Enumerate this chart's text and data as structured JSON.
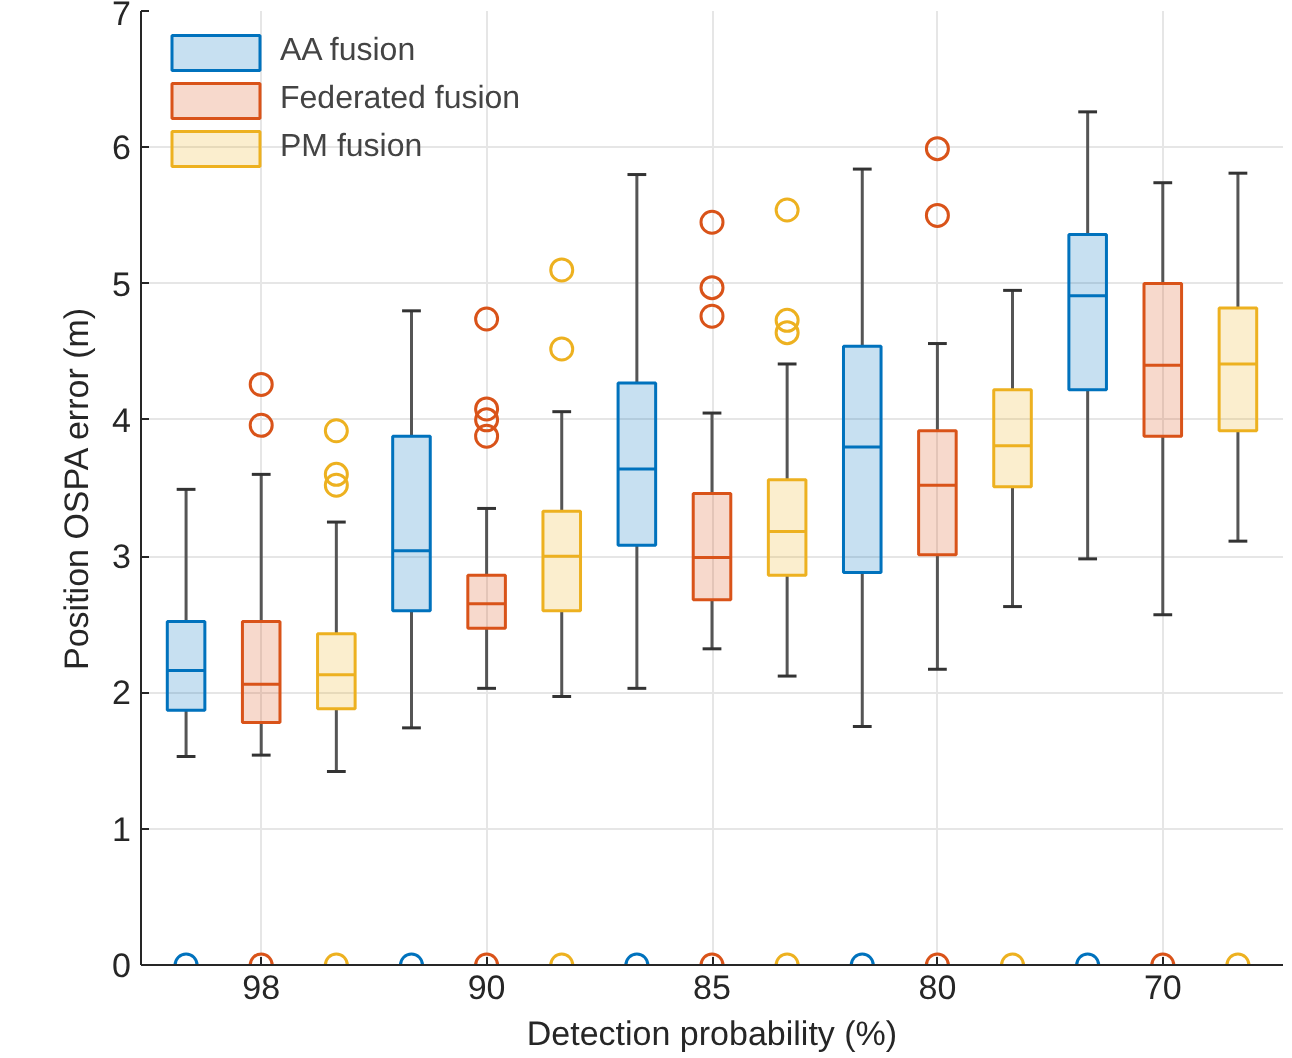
{
  "chart_data": {
    "type": "box",
    "xlabel": "Detection probability (%)",
    "ylabel": "Position OSPA error (m)",
    "categories": [
      "98",
      "90",
      "85",
      "80",
      "70"
    ],
    "ylim": [
      0,
      7
    ],
    "yticks": [
      0,
      1,
      2,
      3,
      4,
      5,
      6,
      7
    ],
    "grid": true,
    "legend": "top left",
    "marker": "circle",
    "series": [
      {
        "name": "AA fusion",
        "color": "#0072bd",
        "boxes": [
          {
            "low": 1.53,
            "q1": 1.87,
            "median": 2.16,
            "q3": 2.52,
            "high": 3.49,
            "outliers": [
              0
            ]
          },
          {
            "low": 1.74,
            "q1": 2.6,
            "median": 3.04,
            "q3": 3.88,
            "high": 4.8,
            "outliers": [
              0
            ]
          },
          {
            "low": 2.03,
            "q1": 3.08,
            "median": 3.64,
            "q3": 4.27,
            "high": 5.8,
            "outliers": [
              0
            ]
          },
          {
            "low": 1.75,
            "q1": 2.88,
            "median": 3.8,
            "q3": 4.54,
            "high": 5.84,
            "outliers": [
              0
            ]
          },
          {
            "low": 2.98,
            "q1": 4.22,
            "median": 4.91,
            "q3": 5.36,
            "high": 6.26,
            "outliers": [
              0
            ]
          }
        ]
      },
      {
        "name": "Federated fusion",
        "color": "#d95319",
        "boxes": [
          {
            "low": 1.54,
            "q1": 1.78,
            "median": 2.06,
            "q3": 2.52,
            "high": 3.6,
            "outliers": [
              4.26,
              3.96,
              0
            ]
          },
          {
            "low": 2.03,
            "q1": 2.47,
            "median": 2.65,
            "q3": 2.86,
            "high": 3.35,
            "outliers": [
              4.74,
              4.08,
              4.0,
              3.88,
              0
            ]
          },
          {
            "low": 2.32,
            "q1": 2.68,
            "median": 2.99,
            "q3": 3.46,
            "high": 4.05,
            "outliers": [
              5.45,
              4.97,
              4.76,
              0
            ]
          },
          {
            "low": 2.17,
            "q1": 3.01,
            "median": 3.52,
            "q3": 3.92,
            "high": 4.56,
            "outliers": [
              5.99,
              5.5,
              0
            ]
          },
          {
            "low": 2.57,
            "q1": 3.88,
            "median": 4.4,
            "q3": 5.0,
            "high": 5.74,
            "outliers": [
              0
            ]
          }
        ]
      },
      {
        "name": "PM fusion",
        "color": "#edb120",
        "boxes": [
          {
            "low": 1.42,
            "q1": 1.88,
            "median": 2.13,
            "q3": 2.43,
            "high": 3.25,
            "outliers": [
              3.92,
              3.6,
              3.52,
              0
            ]
          },
          {
            "low": 1.97,
            "q1": 2.6,
            "median": 3.0,
            "q3": 3.33,
            "high": 4.06,
            "outliers": [
              5.1,
              4.52,
              0
            ]
          },
          {
            "low": 2.12,
            "q1": 2.86,
            "median": 3.18,
            "q3": 3.56,
            "high": 4.41,
            "outliers": [
              5.54,
              4.73,
              4.64,
              0
            ]
          },
          {
            "low": 2.63,
            "q1": 3.51,
            "median": 3.81,
            "q3": 4.22,
            "high": 4.95,
            "outliers": [
              0
            ]
          },
          {
            "low": 3.11,
            "q1": 3.92,
            "median": 4.41,
            "q3": 4.82,
            "high": 5.81,
            "outliers": [
              0
            ]
          }
        ]
      }
    ]
  }
}
